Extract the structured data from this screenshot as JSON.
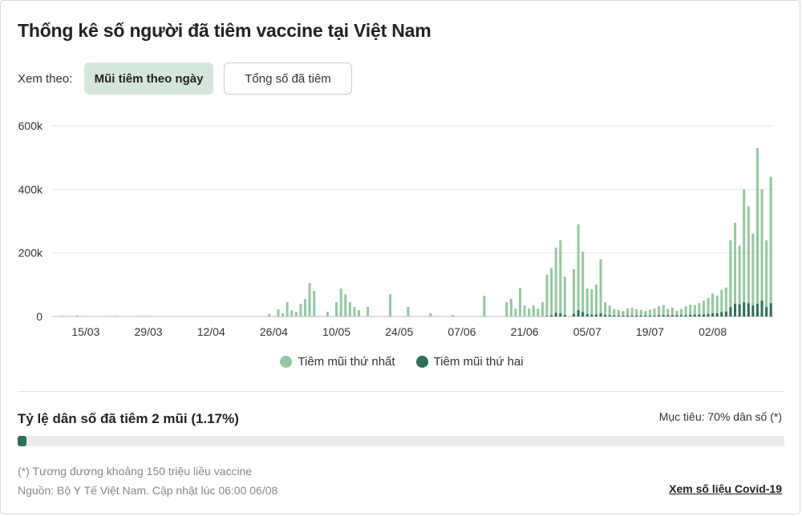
{
  "title": "Thống kê số người đã tiêm vaccine tại Việt Nam",
  "view_by": {
    "label": "Xem theo:",
    "options": [
      "Mũi tiêm theo ngày",
      "Tổng số đã tiêm"
    ],
    "selected": "Mũi tiêm theo ngày"
  },
  "colors": {
    "first_dose": "#94c9a0",
    "second_dose": "#2d6e5a",
    "accent": "#d4e6dc"
  },
  "chart_data": {
    "type": "bar",
    "stacked": true,
    "title": "",
    "xlabel": "",
    "ylabel": "",
    "ylim": [
      0,
      600000
    ],
    "yticks": [
      0,
      200000,
      400000,
      600000
    ],
    "ytick_labels": [
      "0",
      "200k",
      "400k",
      "600k"
    ],
    "xtick_labels": [
      "15/03",
      "29/03",
      "12/04",
      "26/04",
      "10/05",
      "24/05",
      "07/06",
      "21/06",
      "05/07",
      "19/07",
      "02/08"
    ],
    "xtick_days": [
      7,
      21,
      35,
      49,
      63,
      77,
      91,
      105,
      119,
      133,
      147
    ],
    "first_day": "08/03",
    "categories_note": "one bar per day, 08/03 → 06/08",
    "series": [
      {
        "name": "Tiêm mũi thứ nhất",
        "values": [
          0,
          0,
          2000,
          0,
          0,
          3000,
          0,
          1000,
          0,
          0,
          0,
          0,
          1000,
          0,
          2000,
          0,
          0,
          0,
          0,
          0,
          2000,
          0,
          0,
          0,
          0,
          0,
          0,
          0,
          0,
          0,
          0,
          0,
          0,
          0,
          0,
          0,
          0,
          0,
          0,
          0,
          0,
          0,
          0,
          0,
          0,
          0,
          0,
          0,
          8000,
          0,
          22000,
          10000,
          45000,
          20000,
          15000,
          40000,
          55000,
          105000,
          80000,
          0,
          0,
          15000,
          0,
          45000,
          88000,
          70000,
          45000,
          30000,
          20000,
          0,
          30000,
          0,
          0,
          0,
          0,
          70000,
          0,
          0,
          0,
          30000,
          0,
          0,
          0,
          0,
          10000,
          0,
          0,
          0,
          0,
          5000,
          0,
          0,
          0,
          0,
          0,
          0,
          65000,
          0,
          0,
          0,
          0,
          45000,
          55000,
          25000,
          90000,
          35000,
          25000,
          35000,
          25000,
          45000,
          130000,
          148000,
          205000,
          230000,
          120000,
          0,
          140000,
          270000,
          190000,
          80000,
          80000,
          94000,
          170000,
          40000,
          30000,
          20000,
          18000,
          14000,
          22000,
          24000,
          20000,
          18000,
          14000,
          18000,
          22000,
          28000,
          32000,
          20000,
          24000,
          14000,
          20000,
          28000,
          32000,
          30000,
          36000,
          44000,
          50000,
          62000,
          56000,
          70000,
          75000,
          210000,
          255000,
          185000,
          355000,
          305000,
          225000,
          490000,
          350000,
          210000,
          398000
        ],
        "values_note": "first-dose component only (bar total minus second dose), days 08/03 → 06/08"
      },
      {
        "name": "Tiêm mũi thứ hai",
        "values": [
          0,
          0,
          0,
          0,
          0,
          0,
          0,
          0,
          0,
          0,
          0,
          0,
          0,
          0,
          0,
          0,
          0,
          0,
          0,
          0,
          0,
          0,
          0,
          0,
          0,
          0,
          0,
          0,
          0,
          0,
          0,
          0,
          0,
          0,
          0,
          0,
          0,
          0,
          0,
          0,
          0,
          0,
          0,
          0,
          0,
          0,
          0,
          0,
          0,
          0,
          0,
          0,
          0,
          0,
          0,
          0,
          0,
          0,
          0,
          0,
          0,
          0,
          0,
          0,
          0,
          0,
          0,
          0,
          0,
          0,
          0,
          0,
          0,
          0,
          0,
          0,
          0,
          0,
          0,
          0,
          0,
          0,
          0,
          0,
          0,
          0,
          0,
          0,
          0,
          0,
          0,
          0,
          0,
          0,
          0,
          0,
          0,
          0,
          0,
          0,
          0,
          0,
          0,
          0,
          0,
          0,
          0,
          0,
          0,
          0,
          2000,
          4000,
          12000,
          10000,
          5000,
          0,
          8000,
          20000,
          14000,
          8000,
          6000,
          6000,
          10000,
          5000,
          4000,
          3000,
          3000,
          3000,
          3000,
          3000,
          3000,
          3000,
          3000,
          3000,
          3000,
          4000,
          4000,
          4000,
          4000,
          4000,
          4000,
          4000,
          5000,
          6000,
          6000,
          6000,
          8000,
          10000,
          10000,
          14000,
          16000,
          30000,
          40000,
          38000,
          45000,
          42000,
          35000,
          40000,
          50000,
          30000,
          42000
        ]
      }
    ],
    "legend_position": "bottom-center",
    "grid": true
  },
  "legend": {
    "first_dose": "Tiêm mũi thứ nhất",
    "second_dose": "Tiêm mũi thứ hai"
  },
  "coverage": {
    "label": "Tỷ lệ dân số đã tiêm 2 mũi (1.17%)",
    "goal": "Mục tiêu: 70% dân số (*)",
    "progress_fraction": 0.0117
  },
  "footnote": "(*) Tương đương khoảng 150 triệu liều vaccine",
  "source": "Nguồn: Bộ Y Tế Việt Nam. Cập nhật lúc 06:00 06/08",
  "more_link": "Xem số liệu Covid-19"
}
